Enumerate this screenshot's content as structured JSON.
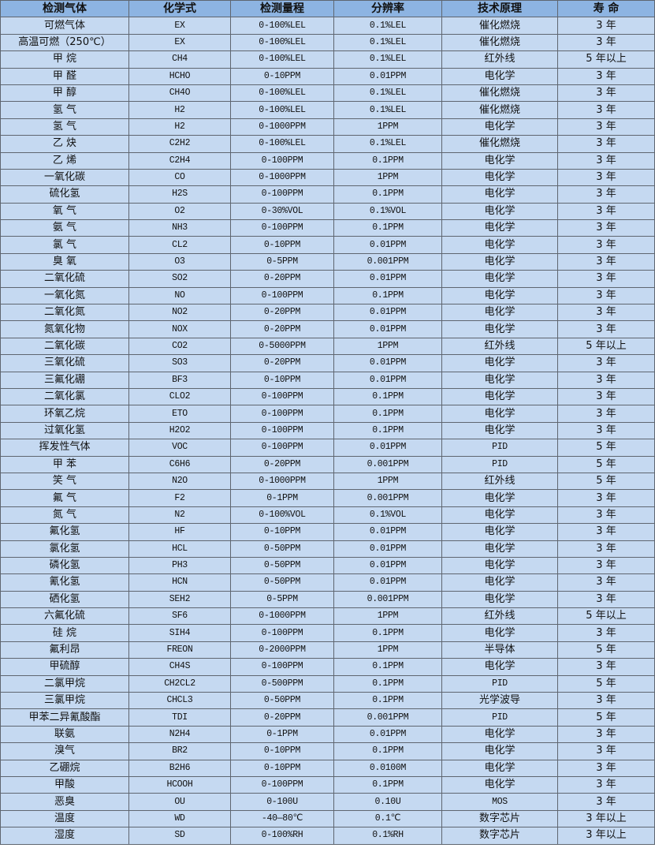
{
  "colors": {
    "header_bg": "#8db4e2",
    "body_bg": "#c5d9f1",
    "border": "#5f6670"
  },
  "headers": [
    "检测气体",
    "化学式",
    "检测量程",
    "分辨率",
    "技术原理",
    "寿 命"
  ],
  "rows": [
    [
      "可燃气体",
      "EX",
      "0-100%LEL",
      "0.1%LEL",
      "催化燃烧",
      "3 年"
    ],
    [
      "高温可燃（250℃）",
      "EX",
      "0-100%LEL",
      "0.1%LEL",
      "催化燃烧",
      "3 年"
    ],
    [
      "甲 烷",
      "CH4",
      "0-100%LEL",
      "0.1%LEL",
      "红外线",
      "5 年以上"
    ],
    [
      "甲 醛",
      "HCHO",
      "0-10PPM",
      "0.01PPM",
      "电化学",
      "3 年"
    ],
    [
      "甲 醇",
      "CH4O",
      "0-100%LEL",
      "0.1%LEL",
      "催化燃烧",
      "3 年"
    ],
    [
      "氢 气",
      "H2",
      "0-100%LEL",
      "0.1%LEL",
      "催化燃烧",
      "3 年"
    ],
    [
      "氢 气",
      "H2",
      "0-1000PPM",
      "1PPM",
      "电化学",
      "3 年"
    ],
    [
      "乙 炔",
      "C2H2",
      "0-100%LEL",
      "0.1%LEL",
      "催化燃烧",
      "3 年"
    ],
    [
      "乙 烯",
      "C2H4",
      "0-100PPM",
      "0.1PPM",
      "电化学",
      "3 年"
    ],
    [
      "一氧化碳",
      "CO",
      "0-1000PPM",
      "1PPM",
      "电化学",
      "3 年"
    ],
    [
      "硫化氢",
      "H2S",
      "0-100PPM",
      "0.1PPM",
      "电化学",
      "3 年"
    ],
    [
      "氧 气",
      "O2",
      "0-30%VOL",
      "0.1%VOL",
      "电化学",
      "3 年"
    ],
    [
      "氨 气",
      "NH3",
      "0-100PPM",
      "0.1PPM",
      "电化学",
      "3 年"
    ],
    [
      "氯 气",
      "CL2",
      "0-10PPM",
      "0.01PPM",
      "电化学",
      "3 年"
    ],
    [
      "臭 氧",
      "O3",
      "0-5PPM",
      "0.001PPM",
      "电化学",
      "3 年"
    ],
    [
      "二氧化硫",
      "SO2",
      "0-20PPM",
      "0.01PPM",
      "电化学",
      "3 年"
    ],
    [
      "一氧化氮",
      "NO",
      "0-100PPM",
      "0.1PPM",
      "电化学",
      "3 年"
    ],
    [
      "二氧化氮",
      "NO2",
      "0-20PPM",
      "0.01PPM",
      "电化学",
      "3 年"
    ],
    [
      "氮氧化物",
      "NOX",
      "0-20PPM",
      "0.01PPM",
      "电化学",
      "3 年"
    ],
    [
      "二氧化碳",
      "CO2",
      "0-5000PPM",
      "1PPM",
      "红外线",
      "5 年以上"
    ],
    [
      "三氧化硫",
      "SO3",
      "0-20PPM",
      "0.01PPM",
      "电化学",
      "3 年"
    ],
    [
      "三氟化硼",
      "BF3",
      "0-10PPM",
      "0.01PPM",
      "电化学",
      "3 年"
    ],
    [
      "二氧化氯",
      "CLO2",
      "0-100PPM",
      "0.1PPM",
      "电化学",
      "3 年"
    ],
    [
      "环氧乙烷",
      "ETO",
      "0-100PPM",
      "0.1PPM",
      "电化学",
      "3 年"
    ],
    [
      "过氧化氢",
      "H2O2",
      "0-100PPM",
      "0.1PPM",
      "电化学",
      "3 年"
    ],
    [
      "挥发性气体",
      "VOC",
      "0-100PPM",
      "0.01PPM",
      "PID",
      "5 年"
    ],
    [
      "甲 苯",
      "C6H6",
      "0-20PPM",
      "0.001PPM",
      "PID",
      "5 年"
    ],
    [
      "笑 气",
      "N2O",
      "0-1000PPM",
      "1PPM",
      "红外线",
      "5 年"
    ],
    [
      "氟 气",
      "F2",
      "0-1PPM",
      "0.001PPM",
      "电化学",
      "3 年"
    ],
    [
      "氮 气",
      "N2",
      "0-100%VOL",
      "0.1%VOL",
      "电化学",
      "3 年"
    ],
    [
      "氟化氢",
      "HF",
      "0-10PPM",
      "0.01PPM",
      "电化学",
      "3 年"
    ],
    [
      "氯化氢",
      "HCL",
      "0-50PPM",
      "0.01PPM",
      "电化学",
      "3 年"
    ],
    [
      "磷化氢",
      "PH3",
      "0-50PPM",
      "0.01PPM",
      "电化学",
      "3 年"
    ],
    [
      "氰化氢",
      "HCN",
      "0-50PPM",
      "0.01PPM",
      "电化学",
      "3 年"
    ],
    [
      "硒化氢",
      "SEH2",
      "0-5PPM",
      "0.001PPM",
      "电化学",
      "3 年"
    ],
    [
      "六氟化硫",
      "SF6",
      "0-1000PPM",
      "1PPM",
      "红外线",
      "5 年以上"
    ],
    [
      "硅 烷",
      "SIH4",
      "0-100PPM",
      "0.1PPM",
      "电化学",
      "3 年"
    ],
    [
      "氟利昂",
      "FREON",
      "0-2000PPM",
      "1PPM",
      "半导体",
      "5 年"
    ],
    [
      "甲硫醇",
      "CH4S",
      "0-100PPM",
      "0.1PPM",
      "电化学",
      "3 年"
    ],
    [
      "二氯甲烷",
      "CH2CL2",
      "0-500PPM",
      "0.1PPM",
      "PID",
      "5 年"
    ],
    [
      "三氯甲烷",
      "CHCL3",
      "0-50PPM",
      "0.1PPM",
      "光学波导",
      "3 年"
    ],
    [
      "甲苯二异氰酸酯",
      "TDI",
      "0-20PPM",
      "0.001PPM",
      "PID",
      "5 年"
    ],
    [
      "联氨",
      "N2H4",
      "0-1PPM",
      "0.01PPM",
      "电化学",
      "3 年"
    ],
    [
      "溴气",
      "BR2",
      "0-10PPM",
      "0.1PPM",
      "电化学",
      "3 年"
    ],
    [
      "乙硼烷",
      "B2H6",
      "0-10PPM",
      "0.0100M",
      "电化学",
      "3 年"
    ],
    [
      "甲酸",
      "HCOOH",
      "0-100PPM",
      "0.1PPM",
      "电化学",
      "3 年"
    ],
    [
      "恶臭",
      "OU",
      "0-100U",
      "0.10U",
      "MOS",
      "3 年"
    ],
    [
      "温度",
      "WD",
      "-40—80℃",
      "0.1℃",
      "数字芯片",
      "3 年以上"
    ],
    [
      "湿度",
      "SD",
      "0-100%RH",
      "0.1%RH",
      "数字芯片",
      "3 年以上"
    ]
  ]
}
